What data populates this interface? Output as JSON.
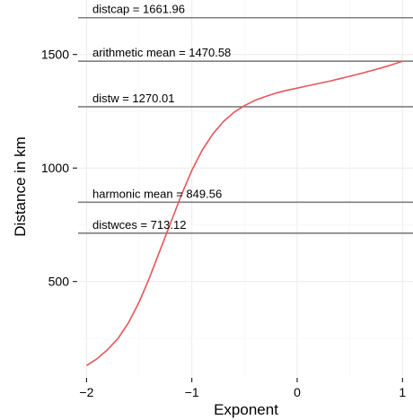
{
  "chart_data": {
    "type": "line",
    "xlabel": "Exponent",
    "ylabel": "Distance in km",
    "xlim": [
      -2.08,
      1.1
    ],
    "ylim": [
      80,
      1740
    ],
    "x_ticks": [
      -2,
      -1,
      0,
      1
    ],
    "x_tick_labels": [
      "−2",
      "−1",
      "0",
      "1"
    ],
    "y_ticks": [
      500,
      1000,
      1500
    ],
    "y_tick_labels": [
      "500",
      "1000",
      "1500"
    ],
    "grid": true,
    "legend": "none",
    "series": [
      {
        "color": "#e8555a",
        "x": [
          -2.0,
          -1.9,
          -1.8,
          -1.7,
          -1.6,
          -1.5,
          -1.4,
          -1.3,
          -1.2,
          -1.1,
          -1.0,
          -0.9,
          -0.8,
          -0.7,
          -0.6,
          -0.5,
          -0.4,
          -0.3,
          -0.2,
          -0.1,
          0.0,
          0.1,
          0.2,
          0.3,
          0.4,
          0.5,
          0.6,
          0.7,
          0.8,
          0.9,
          1.0
        ],
        "y": [
          130,
          160,
          200,
          250,
          320,
          410,
          520,
          640,
          760,
          880,
          990,
          1080,
          1150,
          1205,
          1245,
          1275,
          1298,
          1315,
          1330,
          1342,
          1352,
          1362,
          1372,
          1382,
          1393,
          1404,
          1416,
          1428,
          1441,
          1455,
          1470
        ]
      }
    ],
    "reference_lines": [
      {
        "label": "distcap  =  1661.96",
        "value": 1661.96
      },
      {
        "label": "arithmetic mean  =  1470.58",
        "value": 1470.58
      },
      {
        "label": "distw  =  1270.01",
        "value": 1270.01
      },
      {
        "label": "harmonic mean  =  849.56",
        "value": 849.56
      },
      {
        "label": "distwces  =  713.12",
        "value": 713.12
      }
    ],
    "reference_line_color": "#7f7f7f"
  }
}
